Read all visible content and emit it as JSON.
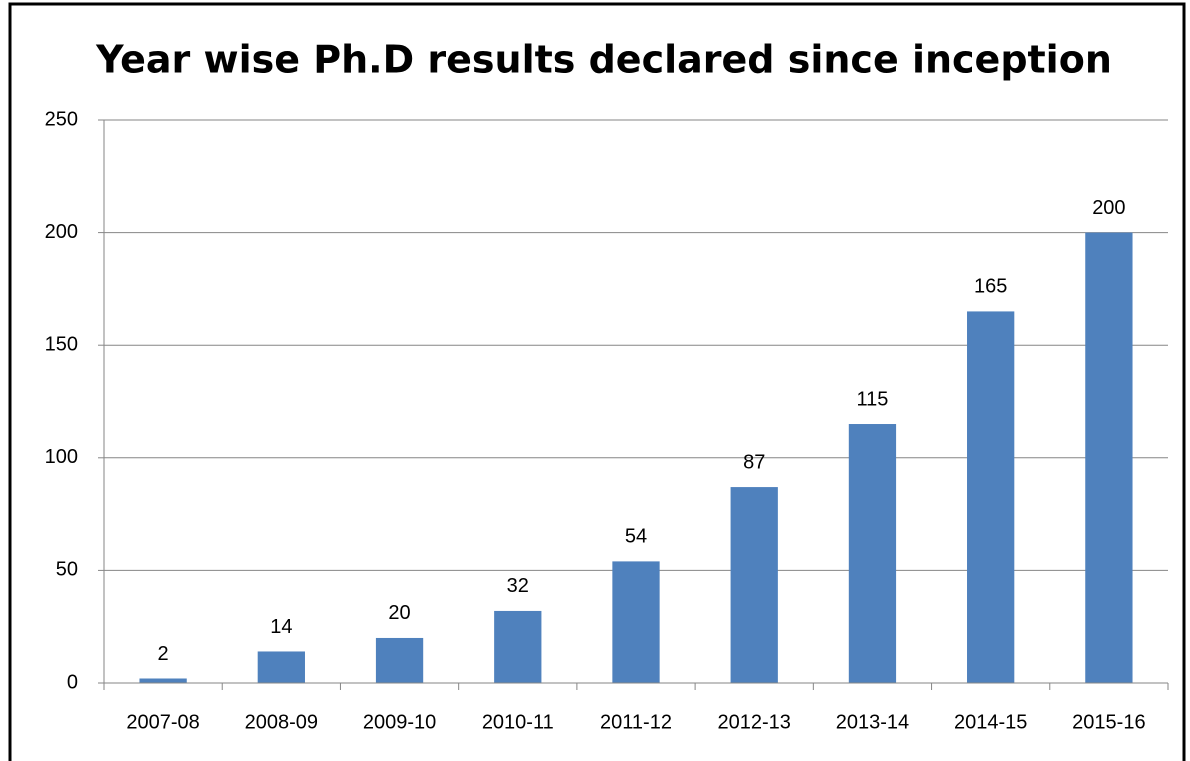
{
  "chart_data": {
    "type": "bar",
    "title": "Year wise Ph.D results declared since inception",
    "categories": [
      "2007-08",
      "2008-09",
      "2009-10",
      "2010-11",
      "2011-12",
      "2012-13",
      "2013-14",
      "2014-15",
      "2015-16"
    ],
    "values": [
      2,
      14,
      20,
      32,
      54,
      87,
      115,
      165,
      200
    ],
    "color": "#4f81bd",
    "ylim": [
      0,
      250
    ],
    "yticks": [
      0,
      50,
      100,
      150,
      200,
      250
    ],
    "grid": true
  }
}
